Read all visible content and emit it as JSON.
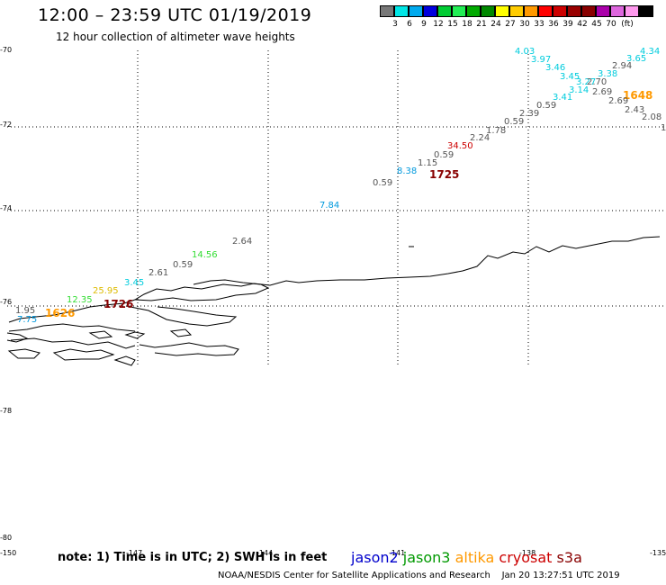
{
  "title": "12:00 – 23:59 UTC 01/19/2019",
  "subtitle": "12 hour collection of altimeter wave heights",
  "legend": {
    "colors": [
      "#777777",
      "#00e5e5",
      "#00aaee",
      "#0000dd",
      "#00cc33",
      "#22ee55",
      "#00aa00",
      "#008800",
      "#ffff00",
      "#ffcc00",
      "#ff9900",
      "#ff0000",
      "#cc0000",
      "#990000",
      "#880000",
      "#aa00aa",
      "#dd66dd",
      "#ff99ee",
      "#000000"
    ],
    "labels": [
      "3",
      "6",
      "9",
      "12",
      "15",
      "18",
      "21",
      "24",
      "27",
      "30",
      "33",
      "36",
      "39",
      "42",
      "45",
      "70",
      "(ft)"
    ]
  },
  "axes": {
    "lat_labels": [
      "-70",
      "-72",
      "-74",
      "-76",
      "-78",
      "-80"
    ],
    "lon_labels": [
      "-150",
      "-147",
      "-144",
      "-141",
      "-138",
      "-135"
    ]
  },
  "labels": [
    {
      "text": "4.03",
      "color": "#00ccdd"
    },
    {
      "text": "3.97",
      "color": "#00ccdd"
    },
    {
      "text": "4.34",
      "color": "#00ccdd"
    },
    {
      "text": "3.65",
      "color": "#00ccdd"
    },
    {
      "text": "3.46",
      "color": "#00ccdd"
    },
    {
      "text": "2.94",
      "color": "#555555"
    },
    {
      "text": "3.45",
      "color": "#00ccdd"
    },
    {
      "text": "3.38",
      "color": "#00ccdd"
    },
    {
      "text": "3.27",
      "color": "#00ccdd"
    },
    {
      "text": "2.70",
      "color": "#555555"
    },
    {
      "text": "3.14",
      "color": "#00ccdd"
    },
    {
      "text": "2.69",
      "color": "#555555"
    },
    {
      "text": "1648",
      "color": "#ff9900"
    },
    {
      "text": "3.41",
      "color": "#00ccdd"
    },
    {
      "text": "0.59",
      "color": "#555555"
    },
    {
      "text": "2.69",
      "color": "#555555"
    },
    {
      "text": "2.43",
      "color": "#555555"
    },
    {
      "text": "2.39",
      "color": "#555555"
    },
    {
      "text": "2.08",
      "color": "#555555"
    },
    {
      "text": "0.59",
      "color": "#555555"
    },
    {
      "text": "1",
      "color": "#555555"
    },
    {
      "text": "1.78",
      "color": "#555555"
    },
    {
      "text": "2.24",
      "color": "#555555"
    },
    {
      "text": "34.50",
      "color": "#cc0000"
    },
    {
      "text": "0.59",
      "color": "#555555"
    },
    {
      "text": "1.15",
      "color": "#555555"
    },
    {
      "text": "8.38",
      "color": "#0099dd"
    },
    {
      "text": "1725",
      "color": "#880000"
    },
    {
      "text": "0.59",
      "color": "#555555"
    },
    {
      "text": "7.84",
      "color": "#0099dd"
    },
    {
      "text": "2.64",
      "color": "#555555"
    },
    {
      "text": "14.56",
      "color": "#33dd33"
    },
    {
      "text": "0.59",
      "color": "#555555"
    },
    {
      "text": "2.61",
      "color": "#555555"
    },
    {
      "text": "3.45",
      "color": "#00ccdd"
    },
    {
      "text": "25.95",
      "color": "#ddbb00"
    },
    {
      "text": "12.35",
      "color": "#33dd33"
    },
    {
      "text": "1726",
      "color": "#880000"
    },
    {
      "text": "1.95",
      "color": "#555555"
    },
    {
      "text": "1626",
      "color": "#ff9900"
    },
    {
      "text": "7.75",
      "color": "#0099dd"
    }
  ],
  "note": "note: 1) Time is in UTC; 2) SWH is in feet",
  "satellites": [
    {
      "name": "jason2",
      "color": "#0000cc"
    },
    {
      "name": "jason3",
      "color": "#009900"
    },
    {
      "name": "altika",
      "color": "#ff9900"
    },
    {
      "name": "cryosat",
      "color": "#cc0000"
    },
    {
      "name": "s3a",
      "color": "#880000"
    }
  ],
  "credit": "NOAA/NESDIS Center for Satellite Applications and Research    Jan 20 13:27:51 UTC 2019"
}
